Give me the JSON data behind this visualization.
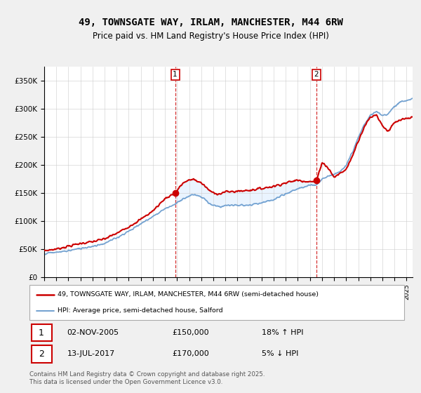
{
  "title": "49, TOWNSGATE WAY, IRLAM, MANCHESTER, M44 6RW",
  "subtitle": "Price paid vs. HM Land Registry's House Price Index (HPI)",
  "title_fontsize": 10,
  "subtitle_fontsize": 8.5,
  "ylabel_ticks": [
    "£0",
    "£50K",
    "£100K",
    "£150K",
    "£200K",
    "£250K",
    "£300K",
    "£350K"
  ],
  "ytick_vals": [
    0,
    50000,
    100000,
    150000,
    200000,
    250000,
    300000,
    350000
  ],
  "ylim": [
    0,
    375000
  ],
  "xlim_start": 1995.0,
  "xlim_end": 2025.5,
  "purchase1_x": 2005.84,
  "purchase1_y": 150000,
  "purchase2_x": 2017.53,
  "purchase2_y": 170000,
  "red_color": "#cc0000",
  "blue_color": "#6699cc",
  "fill_color": "#ddeeff",
  "dashed_color": "#cc0000",
  "legend1": "49, TOWNSGATE WAY, IRLAM, MANCHESTER, M44 6RW (semi-detached house)",
  "legend2": "HPI: Average price, semi-detached house, Salford",
  "table_row1_num": "1",
  "table_row1_date": "02-NOV-2005",
  "table_row1_price": "£150,000",
  "table_row1_hpi": "18% ↑ HPI",
  "table_row2_num": "2",
  "table_row2_date": "13-JUL-2017",
  "table_row2_price": "£170,000",
  "table_row2_hpi": "5% ↓ HPI",
  "footer": "Contains HM Land Registry data © Crown copyright and database right 2025.\nThis data is licensed under the Open Government Licence v3.0.",
  "background_color": "#f0f0f0"
}
